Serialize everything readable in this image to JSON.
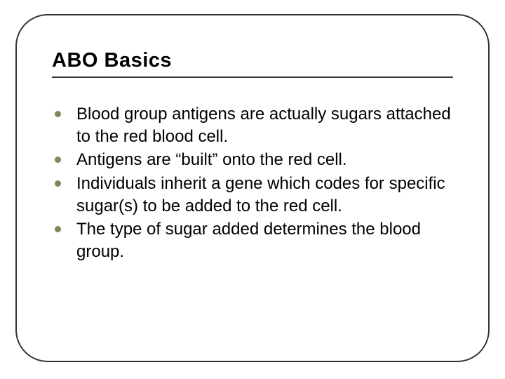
{
  "slide": {
    "title": "ABO Basics",
    "title_fontsize": 29,
    "title_color": "#000000",
    "title_font": "Verdana",
    "underline_color": "#333333",
    "border_color": "#333333",
    "border_radius": 46,
    "background_color": "#ffffff",
    "bullets": [
      "Blood group antigens are actually sugars attached to the red blood cell.",
      "Antigens are “built” onto the red cell.",
      "Individuals inherit a gene which codes for specific sugar(s) to be added to the red cell.",
      "The type of sugar added determines the blood group."
    ],
    "bullet_dot_color": "#7a8a5a",
    "bullet_text_fontsize": 24,
    "bullet_text_color": "#000000"
  }
}
